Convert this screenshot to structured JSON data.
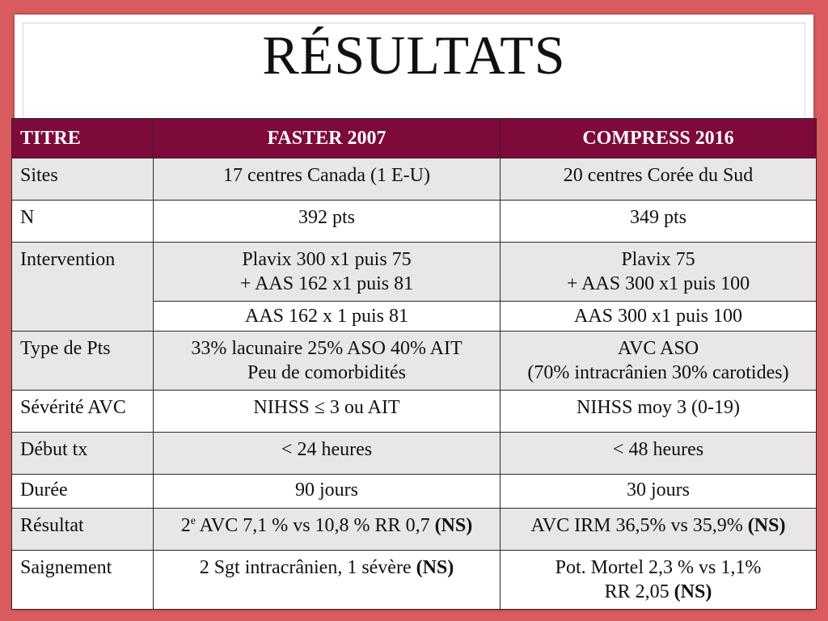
{
  "title": "RÉSULTATS",
  "colors": {
    "header_bg": "#7d0a3a",
    "border_bg": "#d95b5d",
    "shade_row": "#e8e6e6"
  },
  "table": {
    "headers": [
      "TITRE",
      "FASTER 2007",
      "COMPRESS 2016"
    ],
    "sites": {
      "label": "Sites",
      "faster": "17 centres Canada (1 E-U)",
      "compress": "20 centres Corée du Sud"
    },
    "n": {
      "label": "N",
      "faster": "392 pts",
      "compress": "349 pts"
    },
    "intervention": {
      "label": "Intervention",
      "faster_line1": "Plavix 300 x1 puis 75",
      "faster_line2": "+ AAS 162 x1 puis 81",
      "compress_line1": "Plavix 75",
      "compress_line2": "+ AAS 300 x1 puis 100",
      "faster_control": "AAS 162 x 1 puis 81",
      "compress_control": "AAS 300 x1 puis 100"
    },
    "type_pts": {
      "label": "Type de Pts",
      "faster_line1": "33% lacunaire 25% ASO 40% AIT",
      "faster_line2": "Peu de comorbidités",
      "compress_line1": "AVC ASO",
      "compress_line2": "(70% intracrânien 30% carotides)"
    },
    "severite": {
      "label": "Sévérité AVC",
      "faster": "NIHSS ≤ 3 ou AIT",
      "compress": "NIHSS moy 3 (0-19)"
    },
    "debut": {
      "label": "Début tx",
      "faster": "< 24 heures",
      "compress": "< 48 heures"
    },
    "duree": {
      "label": "Durée",
      "faster": "90 jours",
      "compress": "30 jours"
    },
    "resultat": {
      "label": "Résultat",
      "faster_prefix": "2",
      "faster_sup": "e",
      "faster_text": " AVC 7,1 % vs 10,8 % RR 0,7 ",
      "faster_ns": "(NS)",
      "compress_text": "AVC IRM 36,5% vs 35,9% ",
      "compress_ns": "(NS)"
    },
    "saignement": {
      "label": "Saignement",
      "faster_text": "2 Sgt intracrânien, 1 sévère ",
      "faster_ns": "(NS)",
      "compress_line1": "Pot. Mortel 2,3 % vs 1,1%",
      "compress_line2_text": "RR 2,05 ",
      "compress_ns": "(NS)"
    }
  }
}
